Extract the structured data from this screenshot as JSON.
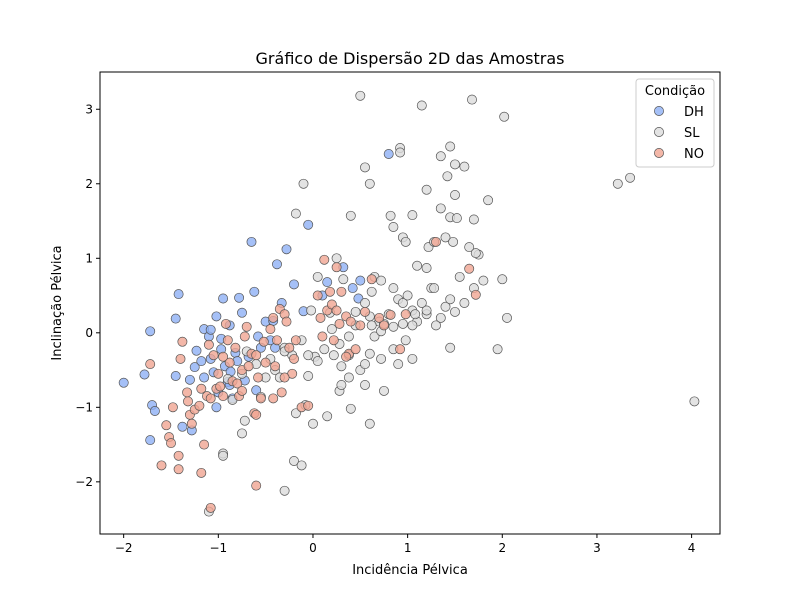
{
  "chart_data": {
    "type": "scatter",
    "title": "Gráfico de Dispersão 2D das Amostras",
    "xlabel": "Incidência Pélvica",
    "ylabel": "Inclinação Pélvica",
    "xlim": [
      -2.25,
      4.3
    ],
    "ylim": [
      -2.7,
      3.5
    ],
    "xticks": [
      -2,
      -1,
      0,
      1,
      2,
      3,
      4
    ],
    "yticks": [
      -2,
      -1,
      0,
      1,
      2,
      3
    ],
    "xtick_labels": [
      "−2",
      "−1",
      "0",
      "1",
      "2",
      "3",
      "4"
    ],
    "ytick_labels": [
      "−2",
      "−1",
      "0",
      "1",
      "2",
      "3"
    ],
    "grid": false,
    "legend": {
      "title": "Condição",
      "placement": "top-right"
    },
    "series": [
      {
        "name": "DH",
        "color": "#8fb0f5",
        "points": [
          [
            -2.0,
            -0.67
          ],
          [
            -1.72,
            -1.44
          ],
          [
            -1.7,
            -0.97
          ],
          [
            -1.67,
            -1.05
          ],
          [
            -1.72,
            0.02
          ],
          [
            -1.78,
            -0.56
          ],
          [
            -1.42,
            0.52
          ],
          [
            -1.45,
            -0.58
          ],
          [
            -1.45,
            0.19
          ],
          [
            -1.38,
            -1.26
          ],
          [
            -1.28,
            -1.31
          ],
          [
            -1.25,
            -0.46
          ],
          [
            -1.23,
            -0.24
          ],
          [
            -1.18,
            -0.38
          ],
          [
            -1.15,
            0.05
          ],
          [
            -1.1,
            -0.05
          ],
          [
            -1.08,
            0.04
          ],
          [
            -1.08,
            -0.35
          ],
          [
            -1.05,
            -0.53
          ],
          [
            -1.02,
            0.22
          ],
          [
            -1.0,
            -0.8
          ],
          [
            -1.02,
            -1.0
          ],
          [
            -0.97,
            -0.22
          ],
          [
            -0.95,
            0.46
          ],
          [
            -0.93,
            -0.45
          ],
          [
            -0.9,
            -0.66
          ],
          [
            -0.88,
            -0.7
          ],
          [
            -0.85,
            -0.88
          ],
          [
            -0.82,
            -0.27
          ],
          [
            -0.8,
            -0.38
          ],
          [
            -0.78,
            0.47
          ],
          [
            -0.75,
            0.27
          ],
          [
            -0.72,
            -0.64
          ],
          [
            -0.65,
            1.22
          ],
          [
            -0.62,
            0.55
          ],
          [
            -0.6,
            -0.77
          ],
          [
            -0.58,
            -0.05
          ],
          [
            -0.55,
            -0.2
          ],
          [
            -0.5,
            0.15
          ],
          [
            -0.45,
            -0.1
          ],
          [
            -0.42,
            0.16
          ],
          [
            -0.38,
            0.92
          ],
          [
            -0.33,
            0.4
          ],
          [
            -0.28,
            1.12
          ],
          [
            -0.2,
            0.65
          ],
          [
            -0.1,
            0.29
          ],
          [
            -0.05,
            1.45
          ],
          [
            0.15,
            0.68
          ],
          [
            0.1,
            0.5
          ],
          [
            0.32,
            0.88
          ],
          [
            0.42,
            0.6
          ],
          [
            0.48,
            0.46
          ],
          [
            0.5,
            0.7
          ],
          [
            0.8,
            2.4
          ],
          [
            -0.87,
            -0.52
          ],
          [
            -0.97,
            -0.08
          ],
          [
            -1.3,
            -0.63
          ],
          [
            -1.15,
            -0.6
          ],
          [
            -0.68,
            -0.32
          ],
          [
            -0.4,
            -0.2
          ],
          [
            -0.88,
            0.1
          ]
        ]
      },
      {
        "name": "SL",
        "color": "#dcdcdc",
        "points": [
          [
            -1.1,
            -2.4
          ],
          [
            -0.95,
            -1.62
          ],
          [
            -0.95,
            -1.65
          ],
          [
            -0.75,
            -1.35
          ],
          [
            -0.72,
            -1.18
          ],
          [
            -0.3,
            -2.12
          ],
          [
            -0.2,
            -1.72
          ],
          [
            -0.12,
            -1.78
          ],
          [
            -0.08,
            -0.97
          ],
          [
            0.0,
            -1.22
          ],
          [
            -0.05,
            -0.58
          ],
          [
            0.02,
            -0.32
          ],
          [
            -0.18,
            -1.08
          ],
          [
            0.15,
            -1.12
          ],
          [
            0.28,
            -0.78
          ],
          [
            0.3,
            -0.7
          ],
          [
            0.4,
            -1.02
          ],
          [
            0.6,
            -1.22
          ],
          [
            0.55,
            -0.7
          ],
          [
            0.75,
            -0.78
          ],
          [
            0.38,
            -0.3
          ],
          [
            0.45,
            0.1
          ],
          [
            0.55,
            0.4
          ],
          [
            0.6,
            0.22
          ],
          [
            0.7,
            0.15
          ],
          [
            0.8,
            0.25
          ],
          [
            0.85,
            0.6
          ],
          [
            0.9,
            0.45
          ],
          [
            0.95,
            0.4
          ],
          [
            1.0,
            0.5
          ],
          [
            1.05,
            0.3
          ],
          [
            1.1,
            0.15
          ],
          [
            1.15,
            0.4
          ],
          [
            1.2,
            0.25
          ],
          [
            1.25,
            0.6
          ],
          [
            1.3,
            0.1
          ],
          [
            1.35,
            0.2
          ],
          [
            1.4,
            0.35
          ],
          [
            1.45,
            -0.2
          ],
          [
            1.5,
            0.28
          ],
          [
            1.55,
            0.75
          ],
          [
            1.6,
            0.4
          ],
          [
            1.7,
            0.6
          ],
          [
            1.75,
            1.05
          ],
          [
            1.8,
            0.7
          ],
          [
            1.95,
            -0.22
          ],
          [
            2.05,
            0.2
          ],
          [
            2.0,
            0.72
          ],
          [
            1.45,
            0.45
          ],
          [
            0.5,
            3.18
          ],
          [
            1.15,
            3.05
          ],
          [
            1.68,
            3.13
          ],
          [
            2.02,
            2.9
          ],
          [
            3.22,
            2.0
          ],
          [
            3.35,
            2.08
          ],
          [
            4.03,
            -0.92
          ],
          [
            0.92,
            2.48
          ],
          [
            0.92,
            2.42
          ],
          [
            1.45,
            2.5
          ],
          [
            1.5,
            2.26
          ],
          [
            1.6,
            2.23
          ],
          [
            1.35,
            2.37
          ],
          [
            1.42,
            2.1
          ],
          [
            0.55,
            2.22
          ],
          [
            0.6,
            2.0
          ],
          [
            1.2,
            1.92
          ],
          [
            1.5,
            1.85
          ],
          [
            1.85,
            1.78
          ],
          [
            1.35,
            1.67
          ],
          [
            1.45,
            1.55
          ],
          [
            1.52,
            1.54
          ],
          [
            1.7,
            1.52
          ],
          [
            1.05,
            1.58
          ],
          [
            0.82,
            1.57
          ],
          [
            0.4,
            1.57
          ],
          [
            -0.1,
            2.0
          ],
          [
            -0.18,
            1.6
          ],
          [
            0.85,
            1.42
          ],
          [
            0.95,
            1.28
          ],
          [
            0.98,
            1.22
          ],
          [
            1.22,
            1.15
          ],
          [
            1.28,
            1.22
          ],
          [
            1.4,
            1.28
          ],
          [
            1.48,
            1.22
          ],
          [
            1.65,
            1.15
          ],
          [
            1.72,
            1.07
          ],
          [
            1.1,
            0.9
          ],
          [
            1.2,
            0.87
          ],
          [
            1.28,
            0.6
          ],
          [
            0.25,
            1.0
          ],
          [
            0.32,
            0.72
          ],
          [
            0.65,
            0.75
          ],
          [
            0.72,
            0.7
          ],
          [
            0.62,
            0.55
          ],
          [
            0.45,
            0.28
          ],
          [
            0.18,
            0.27
          ],
          [
            0.2,
            0.05
          ],
          [
            0.05,
            0.75
          ],
          [
            -0.02,
            0.3
          ],
          [
            -0.3,
            -0.2
          ],
          [
            -0.22,
            -0.3
          ],
          [
            -0.12,
            -0.1
          ],
          [
            -0.05,
            -0.3
          ],
          [
            0.05,
            -0.38
          ],
          [
            0.12,
            -0.22
          ],
          [
            0.22,
            -0.3
          ],
          [
            0.3,
            -0.45
          ],
          [
            0.38,
            -0.6
          ],
          [
            0.5,
            -0.5
          ],
          [
            0.55,
            -0.42
          ],
          [
            0.6,
            -0.28
          ],
          [
            0.72,
            -0.35
          ],
          [
            0.85,
            -0.22
          ],
          [
            0.9,
            -0.42
          ],
          [
            0.98,
            -0.1
          ],
          [
            1.05,
            -0.35
          ],
          [
            0.65,
            -0.05
          ],
          [
            0.72,
            0.02
          ],
          [
            0.85,
            0.08
          ],
          [
            0.95,
            0.12
          ],
          [
            1.05,
            0.1
          ],
          [
            1.2,
            0.3
          ],
          [
            -0.6,
            -0.42
          ],
          [
            -0.55,
            -0.86
          ],
          [
            -0.5,
            -0.6
          ],
          [
            -0.45,
            -0.35
          ],
          [
            -0.4,
            -0.5
          ],
          [
            -0.75,
            -0.55
          ],
          [
            -0.85,
            -0.9
          ],
          [
            -0.9,
            -0.62
          ],
          [
            -0.7,
            -0.25
          ],
          [
            -0.3,
            -0.25
          ],
          [
            -0.35,
            -0.6
          ],
          [
            0.62,
            0.1
          ],
          [
            0.75,
            0.12
          ],
          [
            1.08,
            0.25
          ],
          [
            0.38,
            -0.05
          ],
          [
            0.28,
            -0.15
          ]
        ]
      },
      {
        "name": "NO",
        "color": "#f0a592",
        "points": [
          [
            -1.72,
            -0.42
          ],
          [
            -1.6,
            -1.78
          ],
          [
            -1.55,
            -1.24
          ],
          [
            -1.52,
            -1.4
          ],
          [
            -1.5,
            -1.48
          ],
          [
            -1.48,
            -1.0
          ],
          [
            -1.42,
            -1.65
          ],
          [
            -1.42,
            -1.83
          ],
          [
            -1.4,
            -0.35
          ],
          [
            -1.38,
            -0.12
          ],
          [
            -1.33,
            -0.8
          ],
          [
            -1.32,
            -0.92
          ],
          [
            -1.3,
            -1.1
          ],
          [
            -1.28,
            -1.22
          ],
          [
            -1.25,
            -1.03
          ],
          [
            -1.2,
            -0.98
          ],
          [
            -1.18,
            -0.75
          ],
          [
            -1.18,
            -1.88
          ],
          [
            -1.15,
            -1.5
          ],
          [
            -1.12,
            -0.85
          ],
          [
            -1.1,
            -0.16
          ],
          [
            -1.08,
            -0.88
          ],
          [
            -1.05,
            -0.3
          ],
          [
            -1.02,
            -0.75
          ],
          [
            -1.0,
            -0.55
          ],
          [
            -0.98,
            -0.72
          ],
          [
            -0.95,
            -0.85
          ],
          [
            -0.92,
            0.12
          ],
          [
            -0.9,
            -0.1
          ],
          [
            -0.88,
            -0.4
          ],
          [
            -0.85,
            -0.65
          ],
          [
            -0.82,
            -0.2
          ],
          [
            -0.8,
            -0.68
          ],
          [
            -0.78,
            -0.85
          ],
          [
            -0.75,
            -0.5
          ],
          [
            -0.72,
            -0.05
          ],
          [
            -0.7,
            0.08
          ],
          [
            -0.68,
            -0.45
          ],
          [
            -0.65,
            -0.28
          ],
          [
            -0.62,
            -1.08
          ],
          [
            -0.6,
            -0.3
          ],
          [
            -0.58,
            -0.6
          ],
          [
            -0.55,
            -0.88
          ],
          [
            -0.52,
            -0.12
          ],
          [
            -0.5,
            -0.4
          ],
          [
            -0.45,
            0.05
          ],
          [
            -0.42,
            0.2
          ],
          [
            -0.4,
            -0.45
          ],
          [
            -0.38,
            -0.1
          ],
          [
            -0.35,
            0.32
          ],
          [
            -0.33,
            -0.8
          ],
          [
            -0.3,
            0.25
          ],
          [
            -0.28,
            0.15
          ],
          [
            -0.25,
            -0.2
          ],
          [
            -0.22,
            -0.55
          ],
          [
            -0.2,
            -0.35
          ],
          [
            -0.18,
            -0.1
          ],
          [
            -0.12,
            -1.0
          ],
          [
            -0.05,
            -0.98
          ],
          [
            0.05,
            0.5
          ],
          [
            0.08,
            0.2
          ],
          [
            0.12,
            0.98
          ],
          [
            0.15,
            0.3
          ],
          [
            0.18,
            0.55
          ],
          [
            0.2,
            0.38
          ],
          [
            0.22,
            -0.1
          ],
          [
            0.25,
            0.88
          ],
          [
            0.28,
            0.12
          ],
          [
            0.3,
            0.55
          ],
          [
            0.35,
            0.22
          ],
          [
            0.38,
            -0.28
          ],
          [
            0.4,
            0.15
          ],
          [
            0.45,
            -0.22
          ],
          [
            0.5,
            0.1
          ],
          [
            0.55,
            0.28
          ],
          [
            0.62,
            0.72
          ],
          [
            0.7,
            0.2
          ],
          [
            0.75,
            0.1
          ],
          [
            0.82,
            0.24
          ],
          [
            0.92,
            -0.22
          ],
          [
            0.98,
            0.25
          ],
          [
            1.3,
            1.22
          ],
          [
            1.65,
            0.86
          ],
          [
            1.72,
            0.51
          ],
          [
            -1.08,
            -2.35
          ],
          [
            -0.6,
            -2.05
          ],
          [
            -0.95,
            -0.32
          ],
          [
            -0.42,
            -0.88
          ],
          [
            -0.3,
            -0.6
          ],
          [
            0.1,
            -0.05
          ],
          [
            0.25,
            0.3
          ],
          [
            0.35,
            -0.32
          ],
          [
            -0.75,
            -0.78
          ],
          [
            -0.6,
            -1.1
          ]
        ]
      }
    ]
  }
}
